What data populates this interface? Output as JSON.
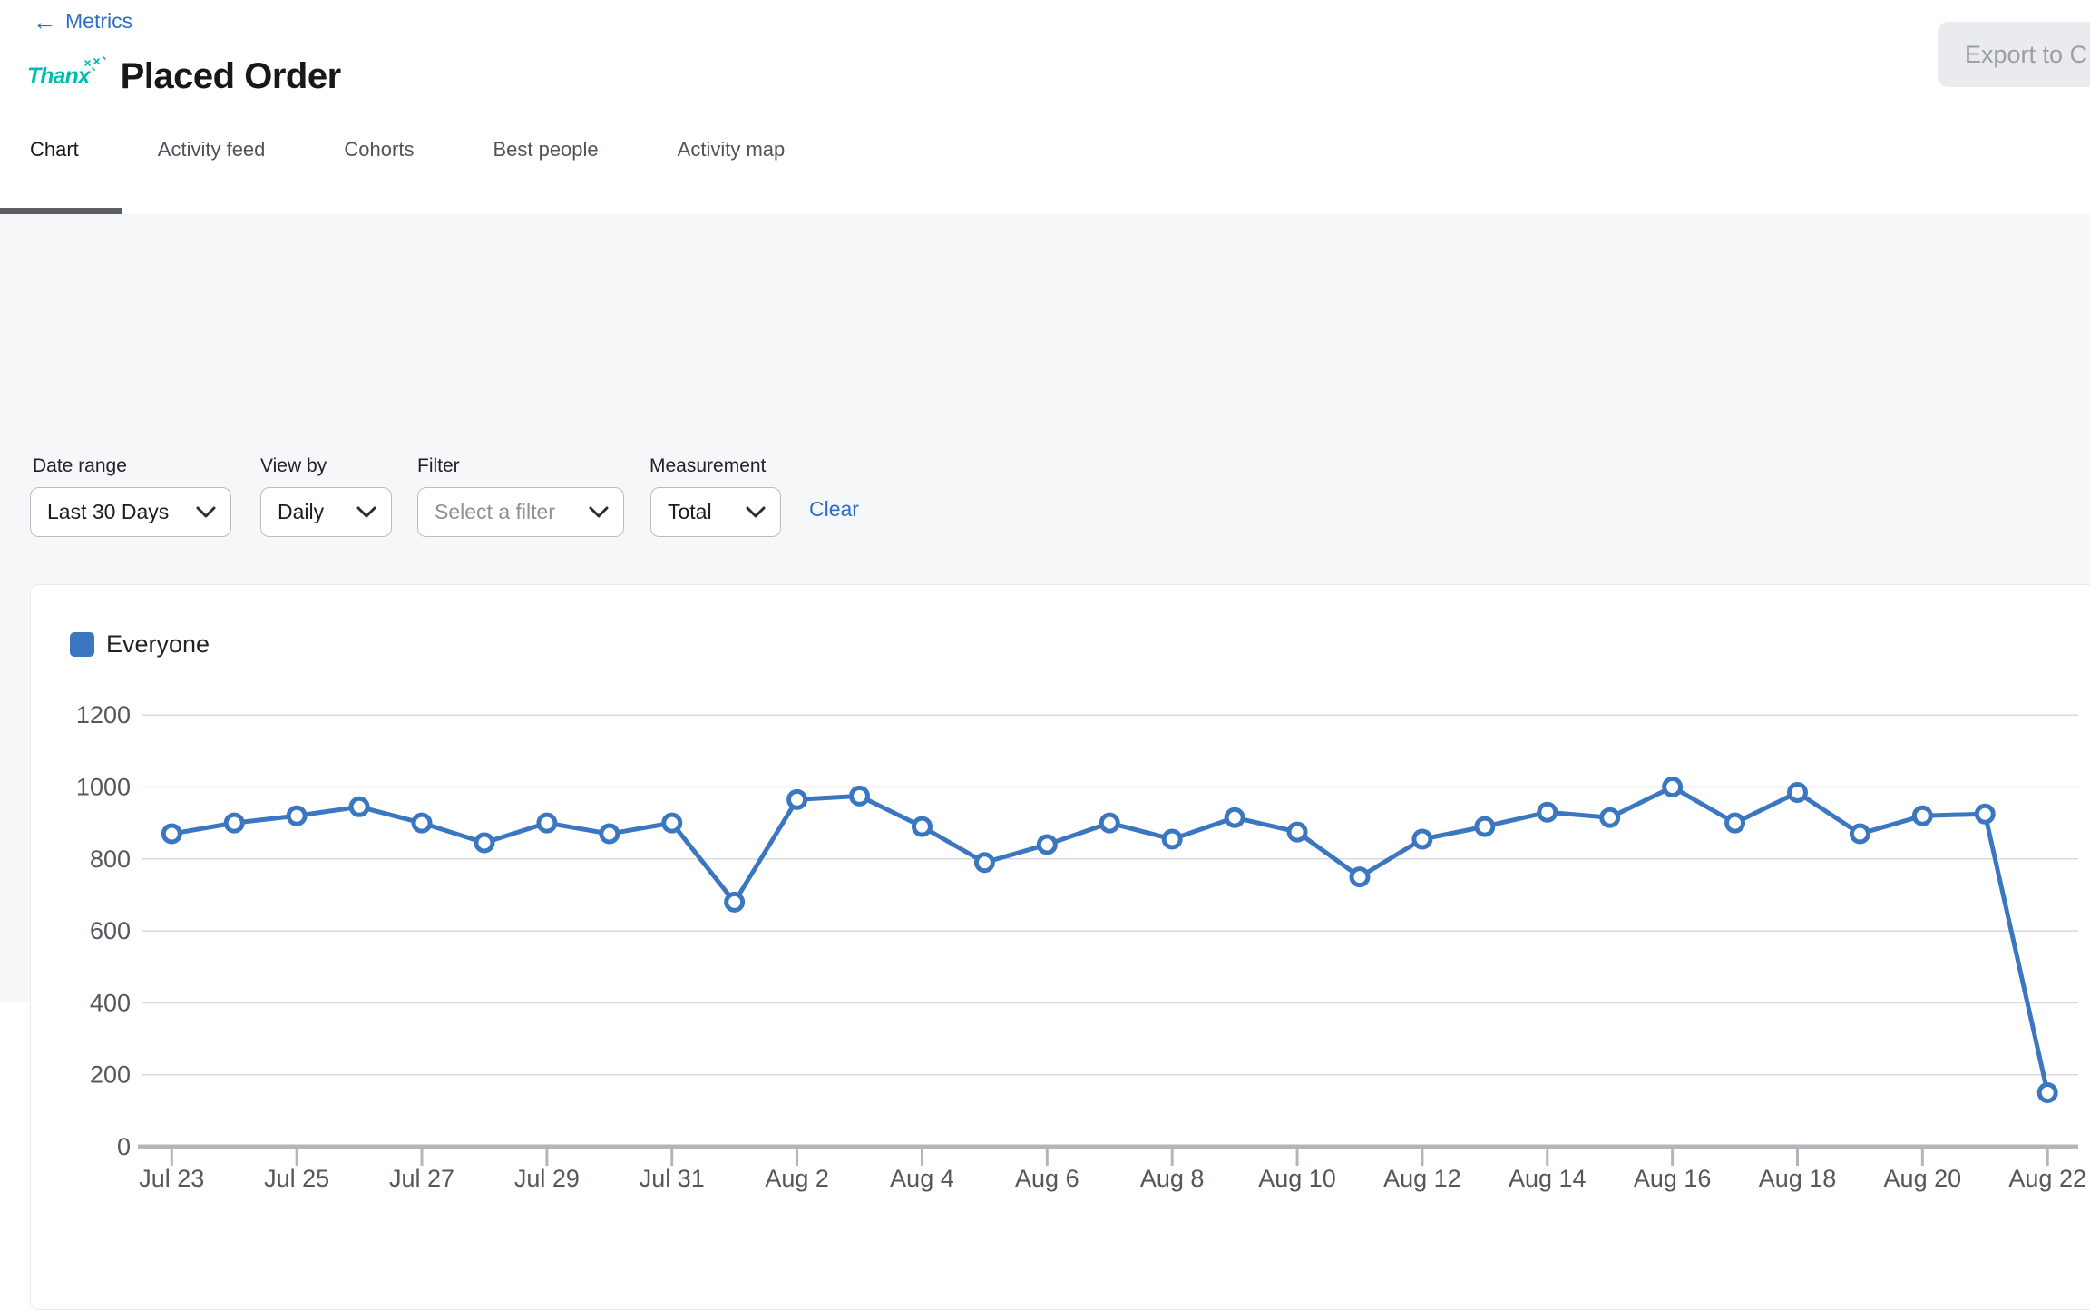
{
  "header": {
    "back_label": "Metrics",
    "brand": "Thanx",
    "title": "Placed Order",
    "export_label": "Export to C"
  },
  "tabs": [
    {
      "label": "Chart",
      "active": true
    },
    {
      "label": "Activity feed",
      "active": false
    },
    {
      "label": "Cohorts",
      "active": false
    },
    {
      "label": "Best people",
      "active": false
    },
    {
      "label": "Activity map",
      "active": false
    }
  ],
  "filters": {
    "date_range": {
      "label": "Date range",
      "value": "Last 30 Days"
    },
    "view_by": {
      "label": "View by",
      "value": "Daily"
    },
    "filter": {
      "label": "Filter",
      "placeholder": "Select a filter"
    },
    "measurement": {
      "label": "Measurement",
      "value": "Total"
    },
    "clear_label": "Clear"
  },
  "chart_data": {
    "type": "line",
    "title": "",
    "xlabel": "",
    "ylabel": "",
    "legend_position": "top-left",
    "grid": true,
    "ylim": [
      0,
      1200
    ],
    "y_ticks": [
      1200,
      1000,
      800,
      600,
      400,
      200,
      0
    ],
    "x_tick_labels": [
      "Jul 23",
      "Jul 25",
      "Jul 27",
      "Jul 29",
      "Jul 31",
      "Aug 2",
      "Aug 4",
      "Aug 6",
      "Aug 8",
      "Aug 10",
      "Aug 12",
      "Aug 14",
      "Aug 16",
      "Aug 18",
      "Aug 20",
      "Aug 22"
    ],
    "categories": [
      "Jul 23",
      "Jul 24",
      "Jul 25",
      "Jul 26",
      "Jul 27",
      "Jul 28",
      "Jul 29",
      "Jul 30",
      "Jul 31",
      "Aug 1",
      "Aug 2",
      "Aug 3",
      "Aug 4",
      "Aug 5",
      "Aug 6",
      "Aug 7",
      "Aug 8",
      "Aug 9",
      "Aug 10",
      "Aug 11",
      "Aug 12",
      "Aug 13",
      "Aug 14",
      "Aug 15",
      "Aug 16",
      "Aug 17",
      "Aug 18",
      "Aug 19",
      "Aug 20",
      "Aug 21",
      "Aug 22"
    ],
    "series": [
      {
        "name": "Everyone",
        "color": "#3b76c1",
        "values": [
          870,
          900,
          920,
          945,
          900,
          845,
          900,
          870,
          900,
          680,
          965,
          975,
          890,
          790,
          840,
          900,
          855,
          915,
          875,
          750,
          855,
          890,
          930,
          915,
          1000,
          900,
          985,
          870,
          920,
          925,
          150
        ]
      }
    ],
    "grid_color": "#d8dadc",
    "axis_color": "#b2b6ba",
    "tick_color": "#54585d"
  }
}
